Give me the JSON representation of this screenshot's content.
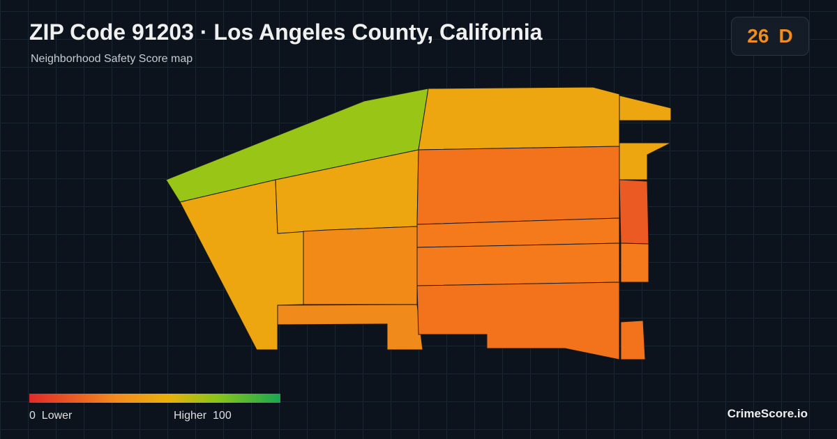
{
  "header": {
    "title": "ZIP Code 91203 · Los Angeles County, California",
    "subtitle": "Neighborhood Safety Score map"
  },
  "score": {
    "value": 26,
    "grade": "D"
  },
  "legend": {
    "min": 0,
    "min_label": "Lower",
    "max_label": "Higher",
    "max": 100
  },
  "brand": "CrimeScore.io"
}
